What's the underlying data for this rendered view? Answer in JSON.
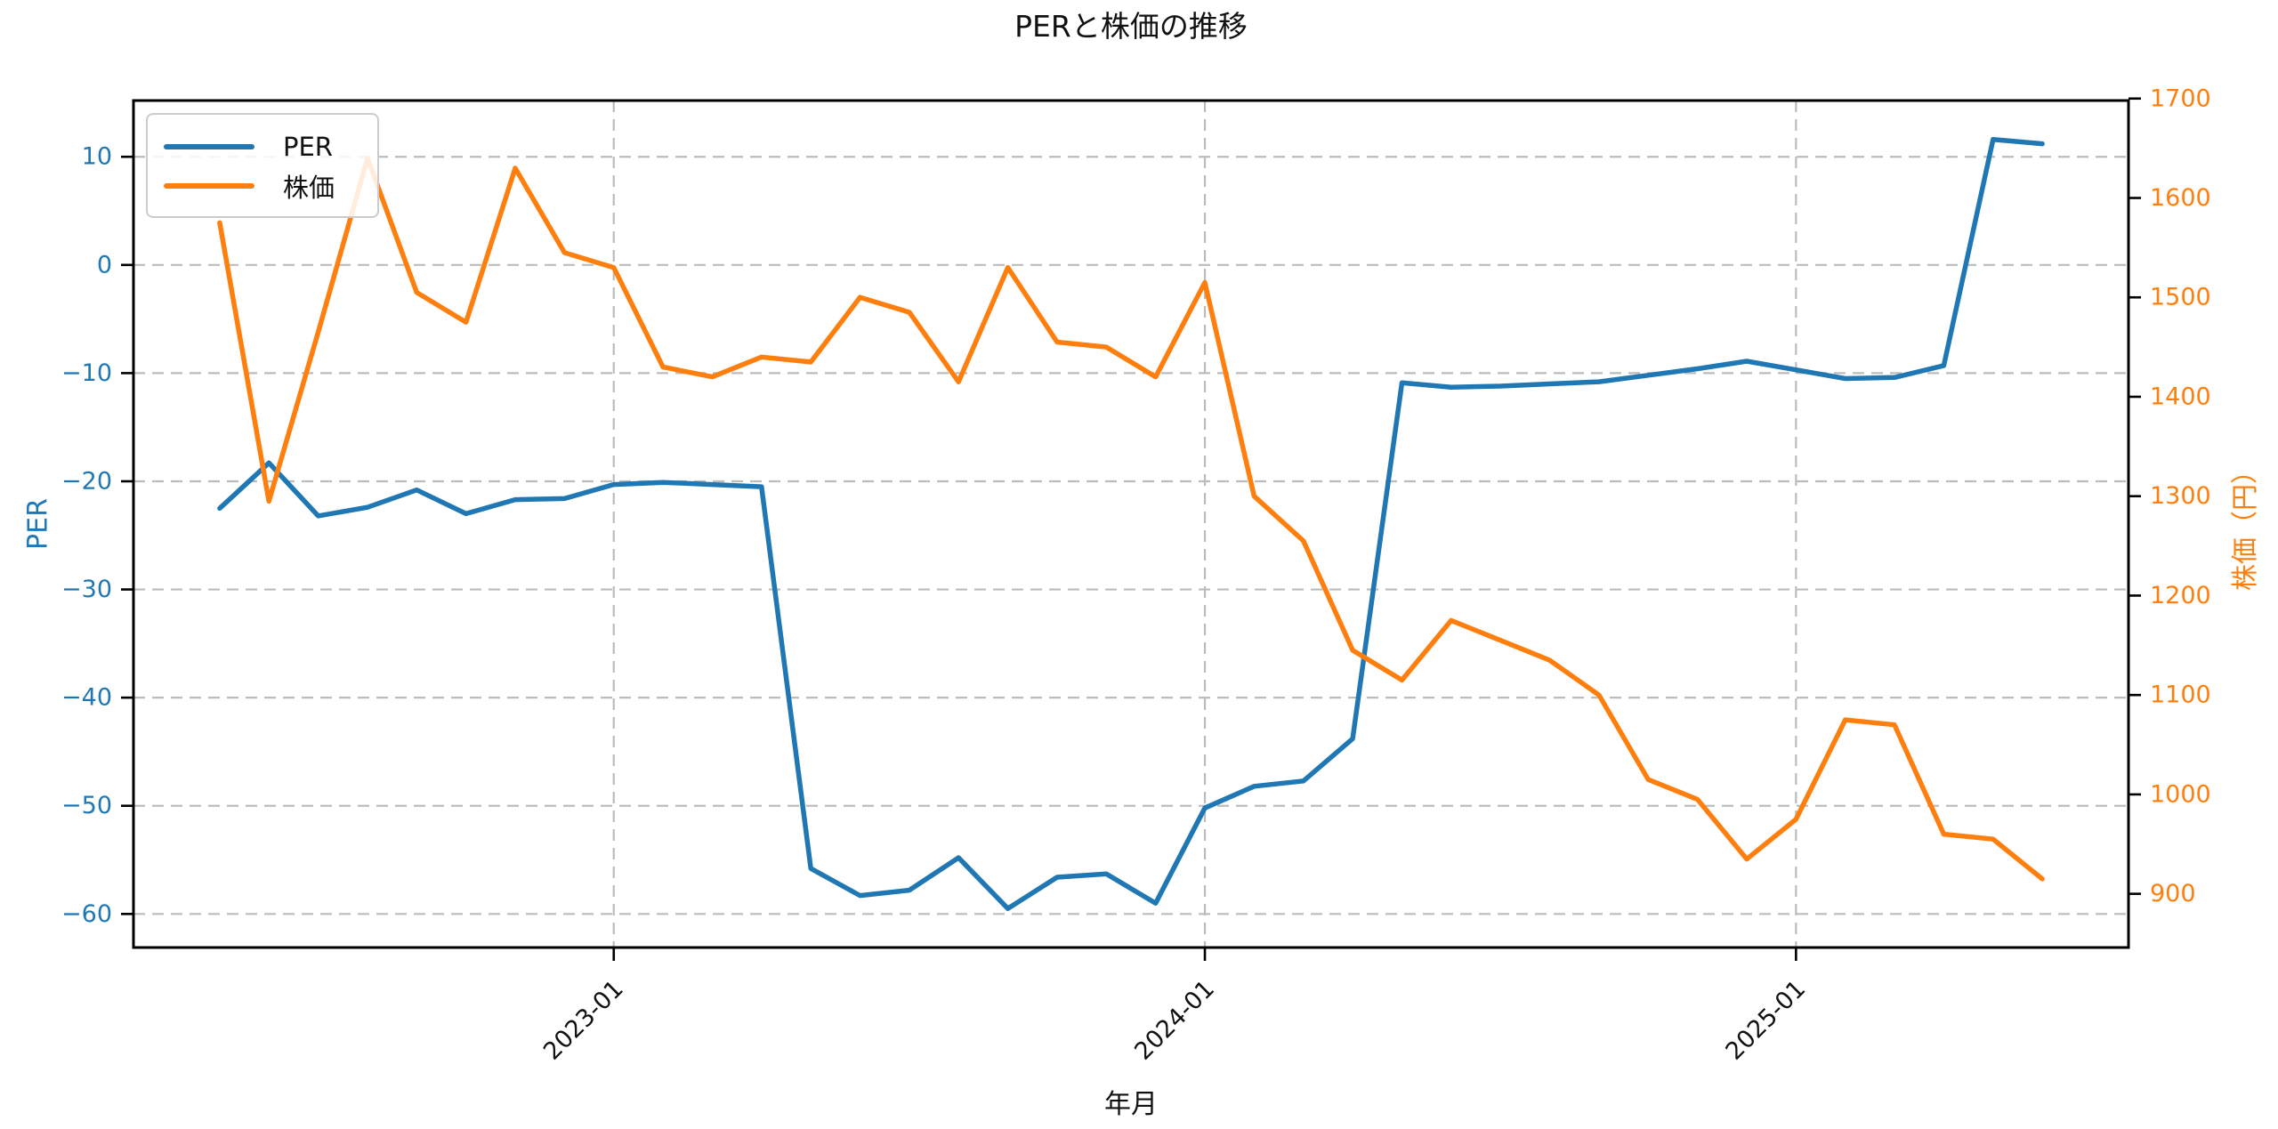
{
  "title": "PERと株価の推移",
  "legend": {
    "position": "upper left",
    "items": [
      {
        "label": "PER",
        "color": "#1f77b4"
      },
      {
        "label": "株価",
        "color": "#ff7f0e"
      }
    ]
  },
  "chart_data": {
    "type": "line",
    "title": "PERと株価の推移",
    "xlabel": "年月",
    "grid": true,
    "legend_position": "upper left",
    "x": [
      "2022-05",
      "2022-06",
      "2022-07",
      "2022-08",
      "2022-09",
      "2022-10",
      "2022-11",
      "2022-12",
      "2023-01",
      "2023-02",
      "2023-03",
      "2023-04",
      "2023-05",
      "2023-06",
      "2023-07",
      "2023-08",
      "2023-09",
      "2023-10",
      "2023-11",
      "2023-12",
      "2024-01",
      "2024-02",
      "2024-03",
      "2024-04",
      "2024-05",
      "2024-06",
      "2024-07",
      "2024-08",
      "2024-09",
      "2024-10",
      "2024-11",
      "2024-12",
      "2025-01",
      "2025-02",
      "2025-03",
      "2025-04",
      "2025-05",
      "2025-06"
    ],
    "xticks": {
      "positions": [
        8,
        20,
        32
      ],
      "labels": [
        "2023-01",
        "2024-01",
        "2025-01"
      ],
      "rotation": 45
    },
    "xlim": [
      -1.75,
      38.75
    ],
    "series": [
      {
        "name": "PER",
        "ylabel": "PER",
        "color": "#1f77b4",
        "axis": "left",
        "ylim": [
          -63.1,
          15.2
        ],
        "yticks": {
          "values": [
            10,
            0,
            -10,
            -20,
            -30,
            -40,
            -50,
            -60
          ],
          "labels": [
            "10",
            "0",
            "−10",
            "−20",
            "−30",
            "−40",
            "−50",
            "−60"
          ]
        },
        "values": [
          -22.5,
          -18.3,
          -23.2,
          -22.4,
          -20.8,
          -23.0,
          -21.7,
          -21.6,
          -20.3,
          -20.1,
          -20.3,
          -20.5,
          -55.8,
          -58.3,
          -57.8,
          -54.8,
          -59.5,
          -56.6,
          -56.3,
          -59.0,
          -50.2,
          -48.2,
          -47.7,
          -43.8,
          -10.9,
          -11.3,
          -11.2,
          -11.0,
          -10.8,
          -10.2,
          -9.6,
          -8.9,
          -9.7,
          -10.5,
          -10.4,
          -9.3,
          11.6,
          11.2
        ]
      },
      {
        "name": "株価",
        "ylabel": "株価（円）",
        "color": "#ff7f0e",
        "axis": "right",
        "ylim": [
          846,
          1698
        ],
        "yticks": {
          "values": [
            1700,
            1600,
            1500,
            1400,
            1300,
            1200,
            1100,
            1000,
            900
          ],
          "labels": [
            "1700",
            "1600",
            "1500",
            "1400",
            "1300",
            "1200",
            "1100",
            "1000",
            "900"
          ]
        },
        "values": [
          1575,
          1295,
          1465,
          1640,
          1505,
          1475,
          1630,
          1545,
          1530,
          1430,
          1420,
          1440,
          1435,
          1500,
          1485,
          1415,
          1530,
          1455,
          1450,
          1420,
          1515,
          1300,
          1255,
          1145,
          1115,
          1175,
          1155,
          1135,
          1100,
          1015,
          995,
          935,
          975,
          1075,
          1070,
          960,
          955,
          915
        ]
      }
    ]
  }
}
